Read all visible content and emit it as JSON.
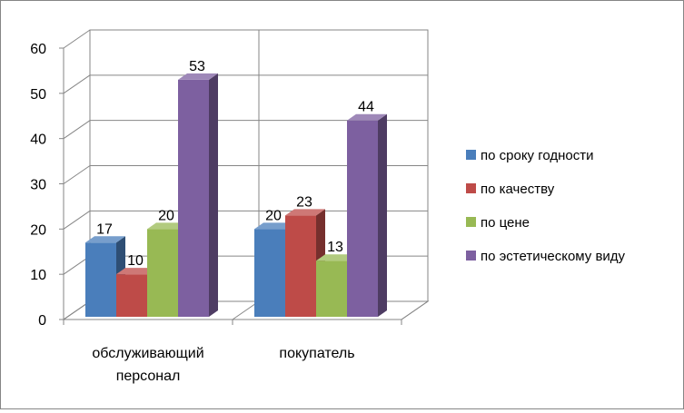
{
  "chart_data": {
    "type": "bar",
    "title": "",
    "xlabel": "",
    "ylabel": "",
    "ylim": [
      0,
      60
    ],
    "yticks": [
      0,
      10,
      20,
      30,
      40,
      50,
      60
    ],
    "grid": true,
    "three_d": true,
    "legend_position": "right",
    "categories": [
      "обслуживающий персонал",
      "покупатель"
    ],
    "category_lines": [
      [
        "обслуживающий",
        "персонал"
      ],
      [
        "покупатель"
      ]
    ],
    "series": [
      {
        "name": "по сроку годности",
        "values": [
          17,
          20
        ],
        "color": "#4a7ebb"
      },
      {
        "name": "по качеству",
        "values": [
          10,
          23
        ],
        "color": "#be4b48"
      },
      {
        "name": "по цене",
        "values": [
          20,
          13
        ],
        "color": "#98b954"
      },
      {
        "name": "по эстетическому виду",
        "values": [
          53,
          44
        ],
        "color": "#7d60a0"
      }
    ]
  }
}
